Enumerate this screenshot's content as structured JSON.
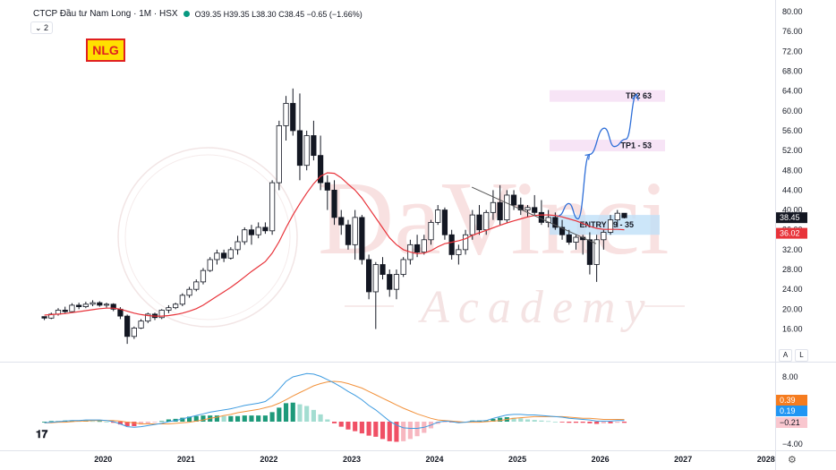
{
  "header": {
    "title": "CTCP Đầu tư Nam Long · 1M · HSX",
    "ohlc": "O39.35  H39.35  L38.30  C38.45  −0.65 (−1.66%)",
    "collapse_label": "⌄ 2"
  },
  "ticker_badge": "NLG",
  "watermark": {
    "big": "DaVinci",
    "sub": "Academy"
  },
  "axis_buttons": {
    "auto": "A",
    "log": "L"
  },
  "settings_icon": "gear-icon",
  "colors": {
    "up": "#ffffff",
    "down": "#131722",
    "ma": "#e8333a",
    "projection": "#2f6fd8",
    "macd": "#3d9be0",
    "signal": "#f2923c",
    "hist_up_strong": "#1d9a7a",
    "hist_up_weak": "#a3ddd1",
    "hist_down_strong": "#f05065",
    "hist_down_weak": "#f7b7c0"
  },
  "chart_data": [
    {
      "type": "candlestick",
      "title": "CTCP Đầu tư Nam Long · 1M · HSX",
      "ylim": [
        14,
        80
      ],
      "x_range": [
        2019.1,
        2028.1
      ],
      "yticks": [
        "80.00",
        "76.00",
        "72.00",
        "68.00",
        "64.00",
        "60.00",
        "56.00",
        "52.00",
        "48.00",
        "44.00",
        "40.00",
        "36.00",
        "32.00",
        "28.00",
        "24.00",
        "20.00",
        "16.00"
      ],
      "xticks": [
        "2020",
        "2021",
        "2022",
        "2023",
        "2024",
        "2025",
        "2026",
        "2027",
        "2028"
      ],
      "last_price_label": "38.45",
      "ma_price_label": "36.02",
      "candles": [
        [
          18.5,
          18.5,
          17.8,
          18.2
        ],
        [
          18.2,
          19.3,
          18.0,
          19.0
        ],
        [
          19.0,
          20.2,
          18.7,
          19.8
        ],
        [
          19.8,
          20.5,
          19.2,
          19.5
        ],
        [
          19.5,
          21.2,
          19.3,
          20.8
        ],
        [
          20.8,
          21.3,
          20.0,
          20.5
        ],
        [
          20.5,
          21.5,
          20.2,
          21.0
        ],
        [
          21.0,
          21.8,
          20.6,
          21.3
        ],
        [
          21.3,
          21.6,
          20.5,
          20.8
        ],
        [
          20.8,
          21.3,
          20.3,
          21.0
        ],
        [
          21.0,
          21.2,
          19.6,
          20.0
        ],
        [
          20.0,
          20.4,
          18.0,
          18.6
        ],
        [
          18.6,
          18.9,
          13.0,
          14.5
        ],
        [
          14.5,
          16.5,
          14.0,
          16.2
        ],
        [
          16.2,
          18.0,
          16.0,
          17.6
        ],
        [
          17.6,
          19.3,
          17.2,
          19.0
        ],
        [
          19.0,
          19.3,
          17.8,
          18.3
        ],
        [
          18.3,
          20.0,
          18.0,
          19.8
        ],
        [
          19.8,
          20.8,
          19.2,
          20.3
        ],
        [
          20.3,
          21.3,
          20.0,
          21.0
        ],
        [
          21.0,
          23.2,
          20.6,
          22.8
        ],
        [
          22.8,
          24.5,
          22.3,
          24.0
        ],
        [
          24.0,
          26.0,
          23.6,
          25.5
        ],
        [
          25.5,
          28.3,
          25.0,
          27.8
        ],
        [
          27.8,
          30.5,
          27.5,
          30.0
        ],
        [
          30.0,
          32.0,
          29.0,
          31.3
        ],
        [
          31.3,
          32.0,
          29.5,
          30.3
        ],
        [
          30.3,
          32.5,
          30.0,
          32.0
        ],
        [
          32.0,
          34.8,
          31.0,
          33.6
        ],
        [
          33.6,
          36.5,
          33.0,
          36.0
        ],
        [
          36.0,
          37.0,
          33.0,
          35.0
        ],
        [
          35.0,
          37.5,
          34.3,
          36.5
        ],
        [
          36.5,
          37.5,
          35.2,
          35.8
        ],
        [
          35.8,
          46.0,
          35.0,
          45.5
        ],
        [
          45.5,
          58.0,
          44.0,
          57.0
        ],
        [
          57.0,
          63.0,
          54.0,
          61.5
        ],
        [
          61.5,
          64.5,
          55.0,
          56.0
        ],
        [
          56.0,
          63.5,
          46.0,
          49.0
        ],
        [
          49.0,
          56.0,
          48.0,
          55.0
        ],
        [
          55.0,
          58.0,
          50.0,
          51.0
        ],
        [
          51.0,
          55.0,
          44.0,
          45.5
        ],
        [
          45.5,
          47.0,
          40.0,
          44.0
        ],
        [
          44.0,
          46.0,
          37.0,
          38.5
        ],
        [
          38.5,
          40.0,
          35.0,
          37.0
        ],
        [
          37.0,
          38.0,
          32.0,
          33.0
        ],
        [
          33.0,
          40.0,
          30.0,
          38.5
        ],
        [
          38.5,
          39.0,
          29.0,
          30.0
        ],
        [
          30.0,
          31.0,
          22.0,
          23.5
        ],
        [
          23.5,
          29.5,
          16.0,
          29.0
        ],
        [
          29.0,
          30.5,
          26.0,
          27.0
        ],
        [
          27.0,
          28.0,
          22.5,
          24.0
        ],
        [
          24.0,
          28.0,
          22.0,
          27.0
        ],
        [
          27.0,
          30.5,
          26.5,
          30.0
        ],
        [
          30.0,
          34.0,
          29.0,
          33.0
        ],
        [
          33.0,
          35.0,
          30.5,
          31.5
        ],
        [
          31.5,
          35.0,
          31.0,
          34.0
        ],
        [
          34.0,
          38.0,
          33.0,
          37.5
        ],
        [
          37.5,
          41.0,
          37.0,
          40.0
        ],
        [
          40.0,
          40.5,
          34.0,
          35.0
        ],
        [
          35.0,
          36.0,
          30.0,
          31.0
        ],
        [
          31.0,
          33.0,
          29.0,
          32.0
        ],
        [
          32.0,
          36.0,
          31.0,
          35.0
        ],
        [
          35.0,
          40.0,
          34.0,
          39.0
        ],
        [
          39.0,
          41.0,
          35.0,
          36.0
        ],
        [
          36.0,
          40.0,
          35.0,
          39.5
        ],
        [
          39.5,
          44.0,
          38.0,
          41.5
        ],
        [
          41.5,
          45.0,
          37.0,
          38.0
        ],
        [
          38.0,
          44.0,
          37.5,
          43.0
        ],
        [
          43.0,
          44.0,
          40.0,
          41.0
        ],
        [
          41.0,
          42.5,
          39.0,
          40.0
        ],
        [
          40.0,
          41.0,
          38.5,
          40.5
        ],
        [
          40.5,
          43.0,
          39.0,
          39.5
        ],
        [
          39.5,
          42.0,
          37.0,
          37.5
        ],
        [
          37.5,
          40.0,
          36.5,
          38.5
        ],
        [
          38.5,
          39.5,
          36.0,
          36.5
        ],
        [
          36.5,
          38.0,
          34.0,
          35.0
        ],
        [
          35.0,
          36.0,
          33.0,
          33.5
        ],
        [
          33.5,
          35.0,
          32.0,
          34.5
        ],
        [
          34.5,
          35.0,
          31.0,
          34.0
        ],
        [
          34.0,
          35.5,
          27.0,
          29.0
        ],
        [
          29.0,
          35.0,
          25.5,
          34.0
        ],
        [
          34.0,
          36.0,
          32.0,
          35.5
        ],
        [
          35.5,
          39.0,
          35.0,
          38.0
        ],
        [
          38.0,
          40.0,
          36.5,
          39.35
        ],
        [
          39.35,
          39.35,
          38.3,
          38.45
        ]
      ],
      "ma": [
        18.8,
        18.9,
        19.0,
        19.1,
        19.3,
        19.5,
        19.7,
        19.9,
        20.1,
        20.2,
        20.2,
        20.0,
        19.6,
        19.2,
        18.9,
        18.7,
        18.6,
        18.6,
        18.7,
        18.9,
        19.2,
        19.6,
        20.1,
        20.8,
        21.7,
        22.6,
        23.5,
        24.4,
        25.4,
        26.5,
        27.6,
        28.6,
        29.6,
        31.3,
        33.6,
        36.4,
        39.0,
        41.3,
        43.4,
        45.3,
        46.8,
        47.5,
        47.4,
        46.5,
        45.2,
        44.0,
        42.4,
        40.4,
        38.4,
        36.4,
        34.4,
        33.0,
        32.0,
        31.5,
        31.2,
        31.3,
        31.8,
        32.6,
        33.2,
        33.5,
        33.8,
        34.2,
        34.9,
        35.4,
        35.9,
        36.4,
        36.9,
        37.4,
        37.8,
        38.2,
        38.6,
        38.9,
        39.0,
        39.0,
        38.9,
        38.6,
        38.2,
        37.8,
        37.3,
        36.7,
        36.3,
        36.1,
        36.1,
        36.1,
        36.02
      ],
      "annotations": [
        {
          "label": "TP2 63",
          "value": 63
        },
        {
          "label": "TP1 - 53",
          "value": 53
        },
        {
          "label": "ENTRY 39 - 35",
          "range": [
            35,
            39
          ]
        }
      ],
      "trendline": [
        [
          2024.45,
          44.6
        ],
        [
          2025.95,
          33.2
        ]
      ],
      "projection": [
        [
          2025.5,
          38.9
        ],
        [
          2025.62,
          41.3
        ],
        [
          2025.73,
          38.2
        ],
        [
          2025.87,
          51.2
        ],
        [
          2026.05,
          56.5
        ],
        [
          2026.17,
          52.8
        ],
        [
          2026.31,
          54.3
        ],
        [
          2026.44,
          63.3
        ]
      ]
    },
    {
      "type": "macd",
      "ylim": [
        -5.6,
        9.8
      ],
      "yticks": [
        "8.00",
        "−4.00"
      ],
      "value_labels": [
        "0.39",
        "0.19",
        "−0.21"
      ],
      "macd": [
        -0.2,
        -0.1,
        0.0,
        0.1,
        0.2,
        0.2,
        0.3,
        0.3,
        0.3,
        0.2,
        0.0,
        -0.4,
        -0.9,
        -1.0,
        -0.9,
        -0.7,
        -0.5,
        -0.3,
        0.0,
        0.2,
        0.5,
        0.8,
        1.1,
        1.4,
        1.7,
        1.9,
        2.1,
        2.3,
        2.6,
        2.9,
        3.1,
        3.3,
        3.6,
        4.5,
        5.8,
        7.2,
        8.0,
        8.3,
        8.6,
        8.5,
        8.1,
        7.5,
        6.9,
        6.2,
        5.4,
        4.7,
        3.9,
        2.9,
        2.1,
        1.1,
        0.1,
        -0.6,
        -1.1,
        -1.2,
        -1.2,
        -1.0,
        -0.6,
        -0.1,
        0.1,
        0.0,
        -0.2,
        -0.1,
        0.1,
        0.1,
        0.2,
        0.6,
        0.9,
        1.2,
        1.3,
        1.3,
        1.2,
        1.2,
        1.1,
        1.0,
        0.9,
        0.8,
        0.6,
        0.5,
        0.4,
        0.3,
        0.1,
        0.1,
        0.1,
        0.2,
        0.19
      ],
      "signal": [
        -0.2,
        -0.2,
        -0.1,
        -0.1,
        0.0,
        0.1,
        0.1,
        0.2,
        0.2,
        0.2,
        0.2,
        0.1,
        -0.1,
        -0.2,
        -0.4,
        -0.4,
        -0.4,
        -0.4,
        -0.4,
        -0.3,
        -0.2,
        -0.1,
        0.1,
        0.3,
        0.6,
        0.8,
        1.1,
        1.3,
        1.6,
        1.8,
        2.0,
        2.2,
        2.5,
        2.8,
        3.3,
        3.9,
        4.6,
        5.2,
        5.8,
        6.4,
        6.8,
        7.1,
        7.2,
        7.1,
        6.8,
        6.4,
        6.0,
        5.4,
        4.8,
        4.2,
        3.6,
        3.0,
        2.4,
        1.9,
        1.4,
        1.0,
        0.6,
        0.3,
        0.2,
        0.1,
        0.0,
        -0.1,
        -0.1,
        -0.1,
        0.0,
        0.1,
        0.2,
        0.4,
        0.6,
        0.7,
        0.8,
        0.9,
        0.9,
        0.9,
        0.9,
        0.9,
        0.8,
        0.7,
        0.6,
        0.6,
        0.5,
        0.4,
        0.4,
        0.4,
        0.39
      ],
      "histogram": [
        0.0,
        0.1,
        0.1,
        0.2,
        0.2,
        0.1,
        0.2,
        0.1,
        0.1,
        0.0,
        -0.2,
        -0.5,
        -0.8,
        -0.8,
        -0.5,
        -0.3,
        -0.1,
        0.1,
        0.4,
        0.5,
        0.7,
        0.9,
        1.0,
        1.1,
        1.1,
        1.1,
        1.0,
        1.0,
        1.0,
        1.1,
        1.1,
        1.1,
        1.1,
        1.7,
        2.5,
        3.3,
        3.4,
        3.1,
        2.8,
        2.1,
        1.3,
        0.4,
        -0.3,
        -0.9,
        -1.4,
        -1.7,
        -2.1,
        -2.5,
        -2.7,
        -3.1,
        -3.5,
        -3.6,
        -3.5,
        -3.1,
        -2.6,
        -2.0,
        -1.2,
        -0.4,
        -0.1,
        -0.1,
        -0.2,
        0.0,
        0.2,
        0.2,
        0.2,
        0.5,
        0.7,
        0.8,
        0.7,
        0.6,
        0.4,
        0.3,
        0.2,
        0.1,
        0.0,
        -0.1,
        -0.2,
        -0.2,
        -0.2,
        -0.3,
        -0.4,
        -0.3,
        -0.3,
        -0.2,
        -0.21
      ]
    }
  ]
}
